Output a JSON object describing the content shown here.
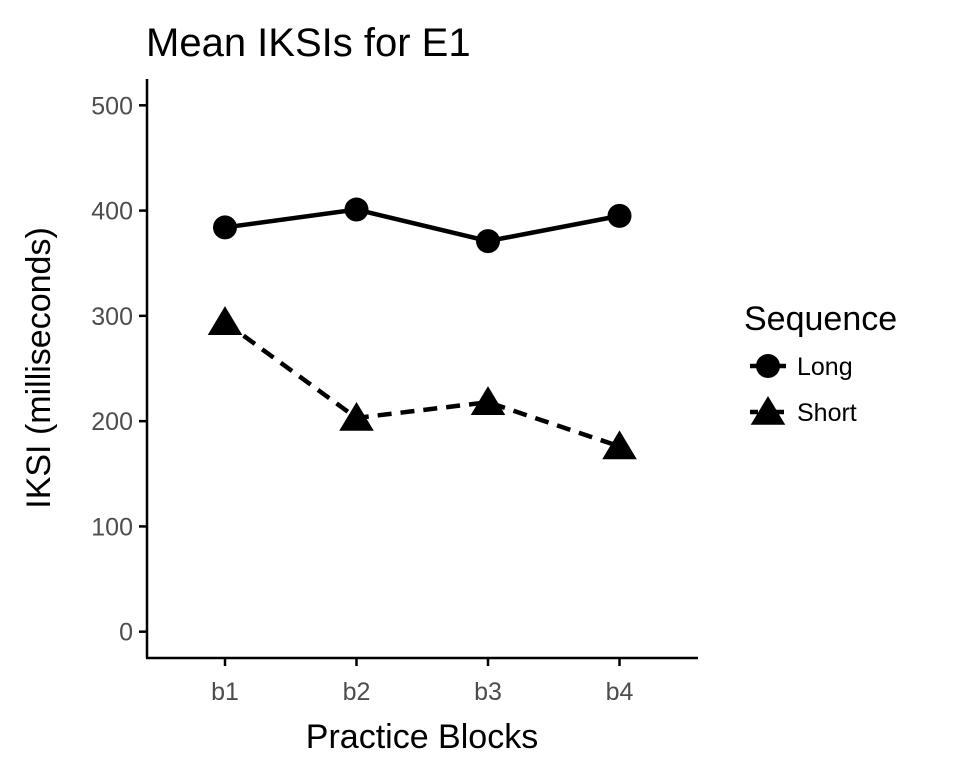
{
  "chart_data": {
    "type": "line",
    "title": "Mean IKSIs for E1",
    "xlabel": "Practice Blocks",
    "ylabel": "IKSI (milliseconds)",
    "categories": [
      "b1",
      "b2",
      "b3",
      "b4"
    ],
    "ylim": [
      -25,
      525
    ],
    "yticks": [
      0,
      100,
      200,
      300,
      400,
      500
    ],
    "grid": false,
    "legend": {
      "title": "Sequence",
      "position": "right"
    },
    "series": [
      {
        "name": "Long",
        "values": [
          384,
          401,
          371,
          395
        ],
        "marker": "circle",
        "line": "solid",
        "color": "#000000"
      },
      {
        "name": "Short",
        "values": [
          294,
          203,
          218,
          176
        ],
        "marker": "triangle",
        "line": "dashed",
        "color": "#000000"
      }
    ]
  }
}
